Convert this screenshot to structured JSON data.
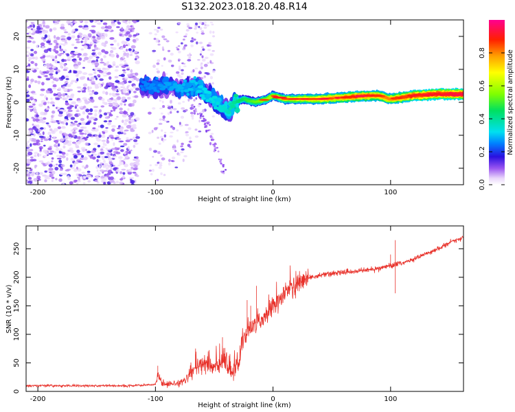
{
  "title": "S132.2023.018.20.48.R14",
  "colors": {
    "snr_line": "#e8312a",
    "axes": "#000000",
    "scatter_purple": "#8a3cf0",
    "track_red": "#e02020"
  },
  "chart_data": [
    {
      "type": "heatmap",
      "xlabel": "Height of straight line (km)",
      "ylabel": "Frequency (Hz)",
      "xlim": [
        -210,
        162
      ],
      "ylim": [
        -25,
        25
      ],
      "xticks": [
        -200,
        -100,
        0,
        100
      ],
      "yticks": [
        -20,
        -10,
        0,
        10,
        20
      ],
      "colorbar": {
        "label": "Normalized spectral amplitude",
        "range": [
          0.0,
          1.0
        ],
        "ticks": [
          "0.0",
          "0.2",
          "0.4",
          "0.6",
          "0.8"
        ],
        "tick_values": [
          0.0,
          0.2,
          0.4,
          0.6,
          0.8
        ],
        "stops": [
          {
            "v": 0.0,
            "color": "#ffffff"
          },
          {
            "v": 0.04,
            "color": "#e9d5fb"
          },
          {
            "v": 0.1,
            "color": "#9a55f0"
          },
          {
            "v": 0.17,
            "color": "#2a10e0"
          },
          {
            "v": 0.25,
            "color": "#0080ff"
          },
          {
            "v": 0.32,
            "color": "#00e0f0"
          },
          {
            "v": 0.45,
            "color": "#00e060"
          },
          {
            "v": 0.55,
            "color": "#80ff00"
          },
          {
            "v": 0.68,
            "color": "#ffff00"
          },
          {
            "v": 0.78,
            "color": "#ffa000"
          },
          {
            "v": 0.88,
            "color": "#ff2000"
          },
          {
            "v": 1.0,
            "color": "#ff0090"
          }
        ]
      },
      "track": [
        [
          -110,
          5
        ],
        [
          -95,
          5
        ],
        [
          -85,
          5
        ],
        [
          -75,
          4
        ],
        [
          -65,
          5
        ],
        [
          -55,
          2
        ],
        [
          -45,
          -1
        ],
        [
          -38,
          -3
        ],
        [
          -32,
          0
        ],
        [
          -25,
          1
        ],
        [
          -15,
          0
        ],
        [
          -5,
          1
        ],
        [
          0,
          2
        ],
        [
          10,
          1
        ],
        [
          20,
          1
        ],
        [
          40,
          1
        ],
        [
          60,
          1.5
        ],
        [
          80,
          2
        ],
        [
          90,
          2
        ],
        [
          100,
          1
        ],
        [
          110,
          1.5
        ],
        [
          120,
          2
        ],
        [
          140,
          2.5
        ],
        [
          162,
          2.5
        ]
      ],
      "track_strength": [
        [
          -110,
          0.25
        ],
        [
          -70,
          0.3
        ],
        [
          -40,
          0.35
        ],
        [
          -20,
          0.5
        ],
        [
          0,
          0.6
        ],
        [
          40,
          0.75
        ],
        [
          70,
          0.85
        ],
        [
          100,
          0.8
        ],
        [
          120,
          0.9
        ],
        [
          162,
          0.95
        ]
      ]
    },
    {
      "type": "line",
      "xlabel": "Height of straight line (km)",
      "ylabel": "SNR (10 * v/v)",
      "xlim": [
        -210,
        162
      ],
      "ylim": [
        0,
        290
      ],
      "xticks": [
        -200,
        -100,
        0,
        100
      ],
      "yticks": [
        0,
        50,
        100,
        150,
        200,
        250
      ],
      "trend": [
        [
          -210,
          10
        ],
        [
          -120,
          10
        ],
        [
          -100,
          12
        ],
        [
          -98,
          28
        ],
        [
          -95,
          15
        ],
        [
          -85,
          12
        ],
        [
          -75,
          18
        ],
        [
          -68,
          38
        ],
        [
          -60,
          45
        ],
        [
          -50,
          42
        ],
        [
          -42,
          50
        ],
        [
          -35,
          32
        ],
        [
          -30,
          45
        ],
        [
          -25,
          95
        ],
        [
          -18,
          115
        ],
        [
          -10,
          125
        ],
        [
          0,
          150
        ],
        [
          10,
          170
        ],
        [
          20,
          190
        ],
        [
          30,
          200
        ],
        [
          50,
          207
        ],
        [
          70,
          210
        ],
        [
          90,
          215
        ],
        [
          100,
          220
        ],
        [
          110,
          225
        ],
        [
          130,
          240
        ],
        [
          150,
          260
        ],
        [
          162,
          270
        ]
      ],
      "spikes": [
        [
          -98,
          45
        ],
        [
          -66,
          65
        ],
        [
          -61,
          57
        ],
        [
          -43,
          95
        ],
        [
          -41,
          76
        ],
        [
          -22,
          160
        ],
        [
          -19,
          150
        ],
        [
          -14,
          185
        ],
        [
          -5,
          130
        ],
        [
          -3,
          160
        ],
        [
          100,
          240
        ],
        [
          104,
          265
        ],
        [
          104,
          172
        ]
      ]
    }
  ]
}
